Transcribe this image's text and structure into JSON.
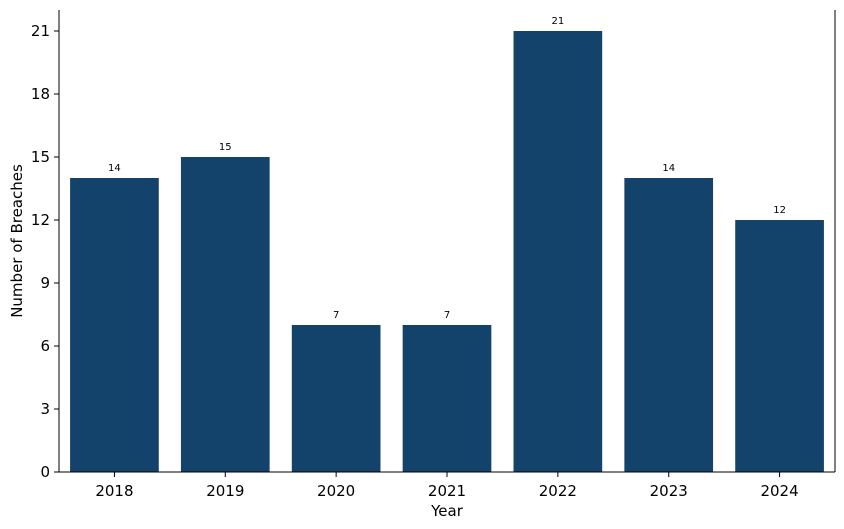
{
  "chart_data": {
    "type": "bar",
    "categories": [
      "2018",
      "2019",
      "2020",
      "2021",
      "2022",
      "2023",
      "2024"
    ],
    "values": [
      14,
      15,
      7,
      7,
      21,
      14,
      12
    ],
    "data_labels": [
      "14",
      "15",
      "7",
      "7",
      "21",
      "14",
      "12"
    ],
    "title": "",
    "xlabel": "Year",
    "ylabel": "Number of Breaches",
    "ylim": [
      0,
      22
    ],
    "yticks": [
      0,
      3,
      6,
      9,
      12,
      15,
      18,
      21
    ],
    "ytick_labels": [
      "0",
      "3",
      "6",
      "9",
      "12",
      "15",
      "18",
      "21"
    ],
    "grid": false,
    "legend": "none",
    "bar_color": "#13426b",
    "axis_color": "#000000"
  }
}
